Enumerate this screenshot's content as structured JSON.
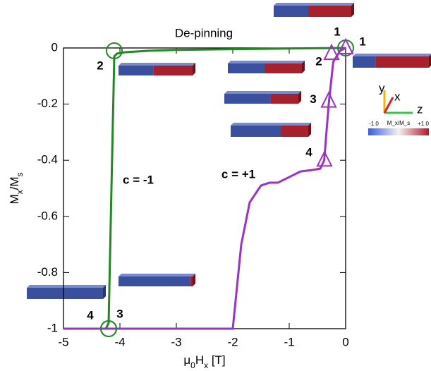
{
  "chart_data": {
    "type": "line",
    "xlabel": [
      "μ",
      "0",
      "H",
      "x",
      " [T]"
    ],
    "ylabel": [
      "M",
      "x",
      "/M",
      "s"
    ],
    "xlim": [
      -5,
      0
    ],
    "ylim": [
      -1,
      0
    ],
    "xticks": [
      -5,
      -4,
      -3,
      -2,
      -1,
      0
    ],
    "yticks": [
      -1,
      -0.8,
      -0.6,
      -0.4,
      -0.2,
      0
    ],
    "series": [
      {
        "name": "c = -1",
        "color": "#1f8a1f",
        "x": [
          0,
          -1,
          -2,
          -3,
          -3.5,
          -3.9,
          -4.05,
          -4.1,
          -4.15,
          -4.2,
          -4.25,
          -5
        ],
        "values": [
          0,
          -0.002,
          -0.004,
          -0.007,
          -0.01,
          -0.015,
          -0.02,
          -0.03,
          -0.5,
          -0.98,
          -1,
          -1
        ]
      },
      {
        "name": "c = +1",
        "color": "#9b30d0",
        "x": [
          -5,
          -2.0,
          -1.95,
          -1.85,
          -1.7,
          -1.5,
          -1.35,
          -1.2,
          -1.0,
          -0.8,
          -0.6,
          -0.45,
          -0.38,
          -0.3,
          -0.22,
          -0.1,
          0
        ],
        "values": [
          -1,
          -1,
          -0.9,
          -0.7,
          -0.55,
          -0.49,
          -0.48,
          -0.48,
          -0.46,
          -0.44,
          -0.435,
          -0.43,
          -0.4,
          -0.2,
          -0.05,
          -0.01,
          0
        ]
      }
    ],
    "markers": [
      {
        "color": "#1f8a1f",
        "shape": "circle",
        "labels": [
          "1",
          "2",
          "3",
          "4"
        ],
        "x": [
          0,
          -4.1,
          -4.2,
          -4.2
        ],
        "values": [
          0,
          -0.01,
          -1,
          -1
        ]
      },
      {
        "color": "#9b30d0",
        "shape": "triangle",
        "labels": [
          "1",
          "2",
          "3",
          "4"
        ],
        "x": [
          0,
          -0.25,
          -0.3,
          -0.375
        ],
        "values": [
          0,
          -0.02,
          -0.19,
          -0.4
        ]
      }
    ],
    "annotations": [
      "De-pinning"
    ],
    "colorbar": {
      "min": "-1.0",
      "max": "+1.0",
      "label": "M_x/M_s",
      "axes": [
        "y",
        "x",
        "z"
      ]
    }
  }
}
